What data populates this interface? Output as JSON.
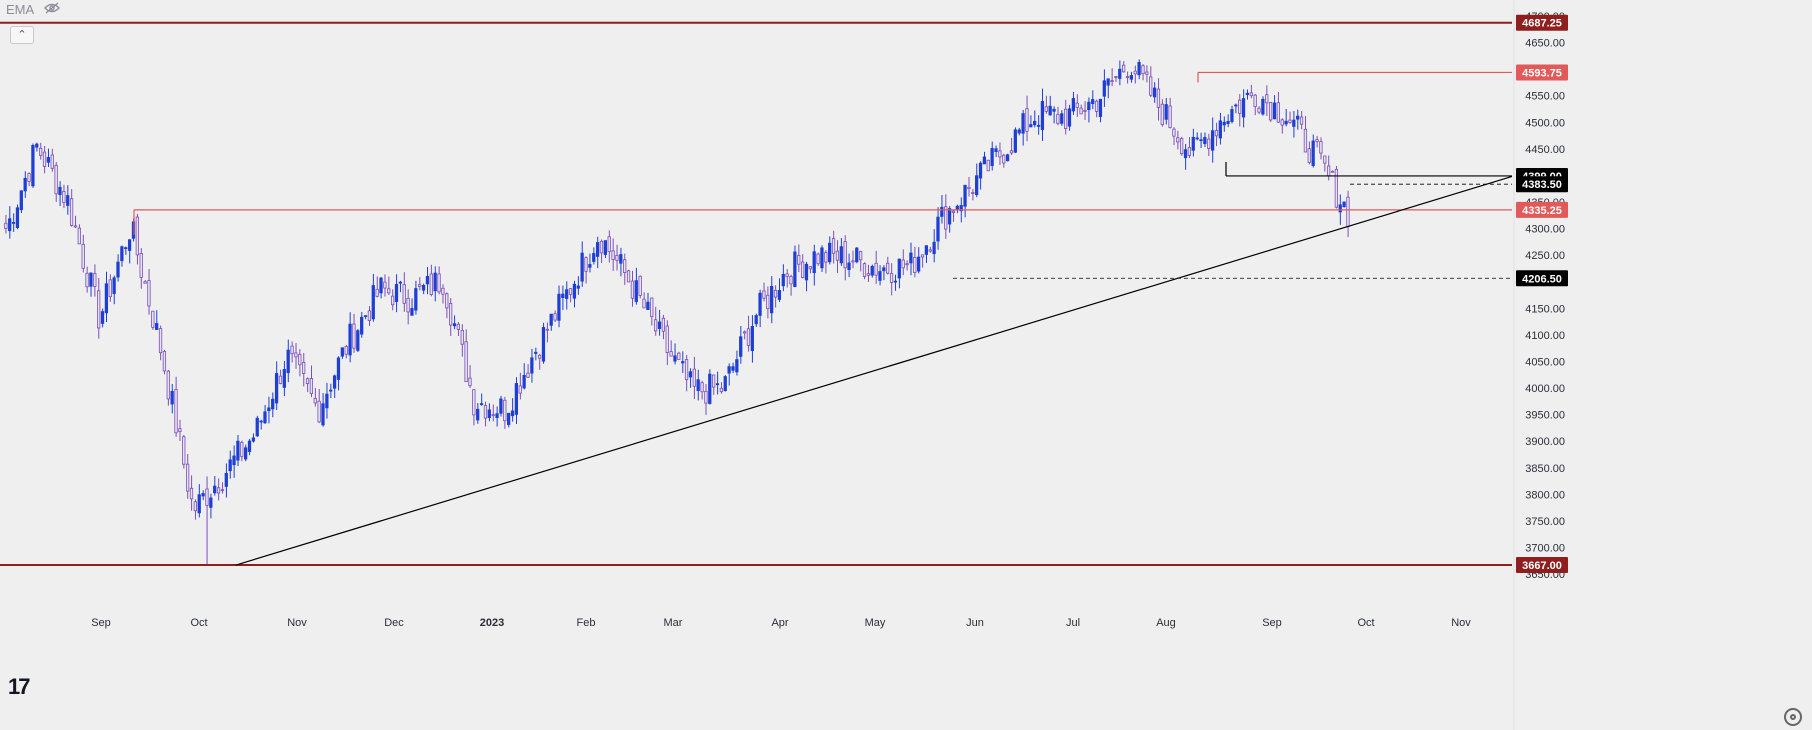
{
  "toolbar": {
    "indicator_label": "EMA",
    "hide_icon": "eye-slash-icon",
    "collapse_icon": "chevron-up-icon"
  },
  "brand": {
    "logo_text": "17"
  },
  "colors": {
    "up": "#1e3fd4",
    "down": "#e6e3f1",
    "down_stroke": "#7b4fb8",
    "red_line": "#e05a5a",
    "red_level": "#8f1e1e",
    "black": "#000000"
  },
  "chart_data": {
    "type": "candlestick",
    "ylim": [
      3620,
      4715
    ],
    "y_ticks": [
      3700,
      3750,
      3800,
      3850,
      3900,
      3950,
      4000,
      4050,
      4100,
      4150,
      4200,
      4250,
      4300,
      4350,
      4400,
      4450,
      4500,
      4550,
      4600,
      4650
    ],
    "y_tick_labels": [
      "3700.00",
      "3750.00",
      "3800.00",
      "3850.00",
      "3900.00",
      "3950.00",
      "4000.00",
      "4050.00",
      "4100.00",
      "4150.00",
      "4200.00",
      "4250.00",
      "4300.00",
      "4350.00",
      "4400.00",
      "4450.00",
      "4500.00",
      "4550.00",
      "4600.00",
      "4650.00"
    ],
    "partial_tick_labels": {
      "top": "4700.00",
      "bottom": "3650.00"
    },
    "x_labels": [
      "Sep",
      "Oct",
      "Nov",
      "Dec",
      "2023",
      "Feb",
      "Mar",
      "Apr",
      "May",
      "Jun",
      "Jul",
      "Aug",
      "Sep",
      "Oct",
      "Nov"
    ],
    "price_path_anchors": [
      [
        4300,
        4290
      ],
      [
        4420,
        4490
      ],
      [
        4370,
        4330
      ],
      [
        4170,
        4090
      ],
      [
        4280,
        4330
      ],
      [
        4150,
        3980
      ],
      [
        3800,
        3740
      ],
      [
        3780,
        3900
      ],
      [
        3950,
        3880
      ],
      [
        4040,
        4080
      ],
      [
        4000,
        3920
      ],
      [
        4030,
        4150
      ],
      [
        4200,
        4170
      ],
      [
        4120,
        4220
      ],
      [
        4270,
        4140
      ],
      [
        4000,
        3950
      ],
      [
        3920,
        4000
      ],
      [
        4050,
        4100
      ],
      [
        4150,
        4210
      ],
      [
        4280,
        4300
      ],
      [
        4240,
        4160
      ],
      [
        4100,
        4080
      ],
      [
        4000,
        3990
      ],
      [
        3960,
        4040
      ],
      [
        4100,
        4170
      ],
      [
        4210,
        4230
      ],
      [
        4240,
        4260
      ],
      [
        4220,
        4270
      ],
      [
        4250,
        4200
      ],
      [
        4240,
        4220
      ],
      [
        4310,
        4330
      ],
      [
        4350,
        4420
      ],
      [
        4440,
        4460
      ],
      [
        4470,
        4560
      ],
      [
        4540,
        4480
      ],
      [
        4490,
        4600
      ],
      [
        4640,
        4590
      ],
      [
        4520,
        4530
      ],
      [
        4460,
        4420
      ],
      [
        4480,
        4540
      ],
      [
        4560,
        4550
      ],
      [
        4510,
        4520
      ],
      [
        4470,
        4400
      ],
      [
        4340,
        4320
      ]
    ],
    "lines": [
      {
        "name": "resistance",
        "value": 4687.25,
        "label": "4687.25",
        "style": "dark-red"
      },
      {
        "name": "level",
        "value": 4593.75,
        "label": "4593.75",
        "style": "red"
      },
      {
        "name": "level",
        "value": 4399.0,
        "label": "4399.00",
        "style": "black"
      },
      {
        "name": "level",
        "value": 4383.5,
        "label": "4383.50",
        "style": "black-dashed"
      },
      {
        "name": "level",
        "value": 4335.25,
        "label": "4335.25",
        "style": "red"
      },
      {
        "name": "level",
        "value": 4206.5,
        "label": "4206.50",
        "style": "black-dashed"
      },
      {
        "name": "support",
        "value": 3667.0,
        "label": "3667.00",
        "style": "dark-red"
      }
    ],
    "trendline": {
      "from": [
        236,
        3667.0
      ],
      "to": [
        1512,
        4398.0
      ]
    }
  }
}
